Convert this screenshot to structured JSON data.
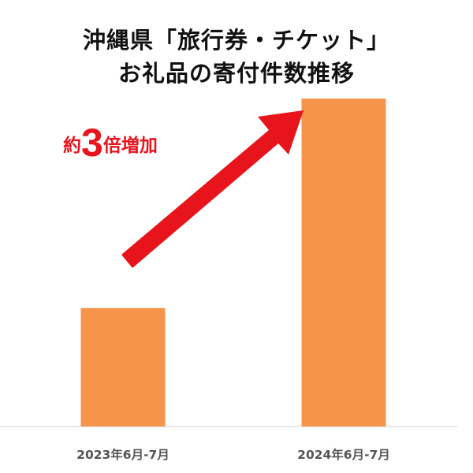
{
  "chart_data": {
    "type": "bar",
    "title": "沖縄県「旅行券・チケット」",
    "subtitle": "お礼品の寄付件数推移",
    "categories": [
      "2023年6月-7月",
      "2024年6月-7月"
    ],
    "values": [
      1,
      2.77
    ],
    "xlabel": "",
    "ylabel": "",
    "grid": false,
    "bar_color": "#f5944a",
    "annotation": {
      "prefix": "約",
      "number": "3",
      "suffix": "倍増加",
      "color": "#e8141c",
      "arrow": "up-right"
    }
  }
}
